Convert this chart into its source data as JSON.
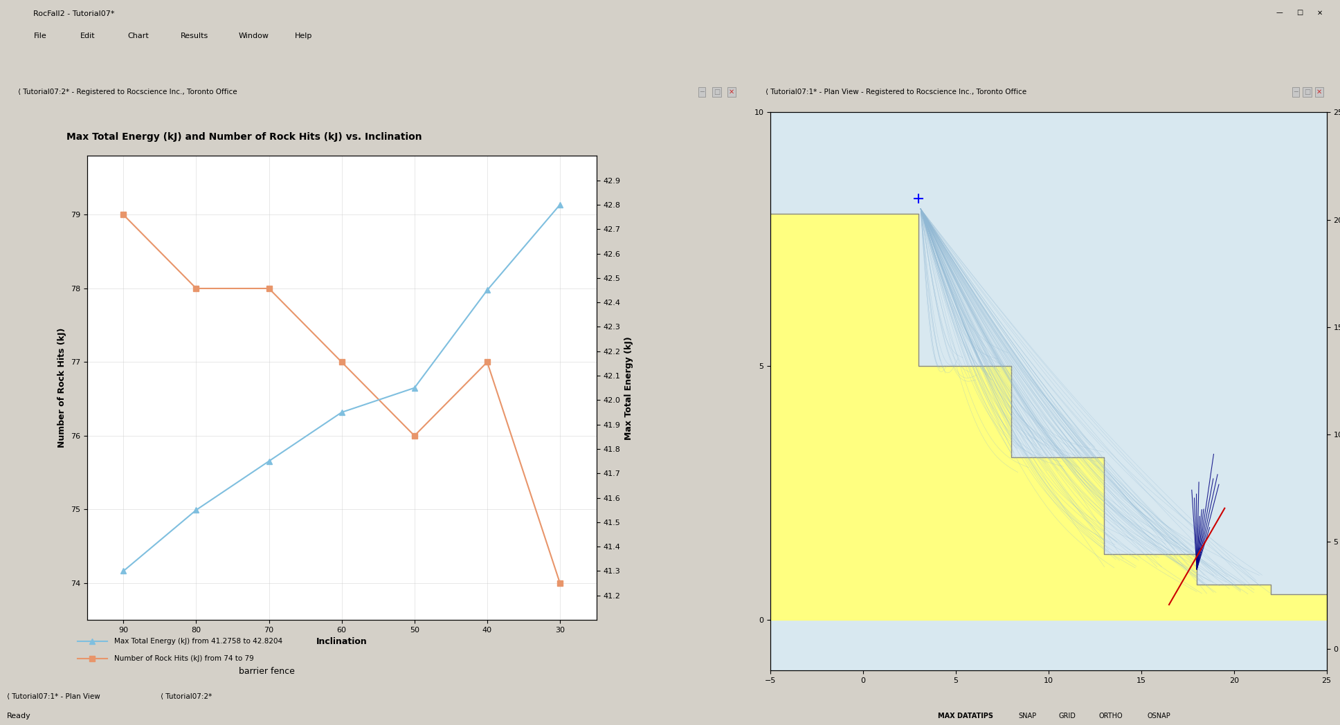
{
  "title": "Max Total Energy (kJ) and Number of Rock Hits (kJ) vs. Inclination",
  "xlabel": "Inclination",
  "ylabel_left": "Number of Rock Hits (kJ)",
  "ylabel_right": "Max Total Energy (kJ)",
  "x_values": [
    90,
    80,
    70,
    60,
    50,
    40,
    30
  ],
  "orange_values": [
    79.0,
    78.0,
    78.0,
    77.0,
    76.0,
    77.0,
    74.0
  ],
  "blue_energy": [
    41.3,
    41.55,
    41.75,
    41.95,
    42.05,
    42.45,
    42.8
  ],
  "blue_color": "#7FBFDF",
  "orange_color": "#E8956A",
  "legend_blue": "Max Total Energy (kJ) from 41.2758 to 42.8204",
  "legend_orange": "Number of Rock Hits (kJ) from 74 to 79",
  "ylim_left": [
    73.5,
    79.8
  ],
  "ylim_right": [
    41.1,
    43.0
  ],
  "yticks_left": [
    74,
    75,
    76,
    77,
    78,
    79
  ],
  "yticks_right": [
    41.2,
    41.3,
    41.4,
    41.5,
    41.6,
    41.7,
    41.8,
    41.9,
    42.0,
    42.1,
    42.2,
    42.3,
    42.4,
    42.5,
    42.6,
    42.7,
    42.8,
    42.9
  ],
  "subtitle": "barrier fence",
  "win1_title": "Tutorial07:2* - Registered to Rocscience Inc., Toronto Office",
  "win2_title": "Tutorial07:1* - Plan View - Registered to Rocscience Inc., Toronto Office",
  "app_title": "RocFall2 - Tutorial07*",
  "menubar": "File   Edit   Chart   Results   Window   Help",
  "statusbar": "Ready",
  "bg_color": "#D4D0C8",
  "win_bg": "#ECF3FB",
  "plot_bg": "#FFFFFF",
  "titlebar_bg": "#4A6FA5",
  "terrain_yellow": "#FFFF80",
  "terrain_outline": "#888888",
  "traj_color": "#90B8D4",
  "fan_color": "#000080",
  "red_line_color": "#CC0000",
  "plan_bg": "#D8E8F0"
}
